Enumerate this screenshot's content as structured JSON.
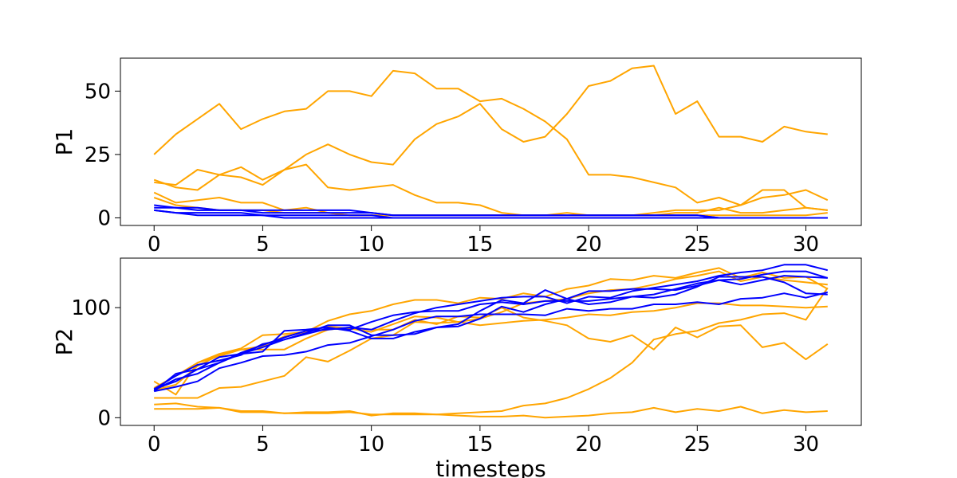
{
  "chart_data": [
    {
      "type": "line",
      "ylabel": "P1",
      "xlabel": "",
      "xlim": [
        -1.55,
        32.55
      ],
      "ylim": [
        -3,
        63
      ],
      "xticks": [
        0,
        5,
        10,
        15,
        20,
        25,
        30
      ],
      "yticks": [
        0,
        25,
        50
      ],
      "grid": false,
      "x": [
        0,
        1,
        2,
        3,
        4,
        5,
        6,
        7,
        8,
        9,
        10,
        11,
        12,
        13,
        14,
        15,
        16,
        17,
        18,
        19,
        20,
        21,
        22,
        23,
        24,
        25,
        26,
        27,
        28,
        29,
        30,
        31
      ],
      "series": [
        {
          "color": "#ffa500",
          "values": [
            25,
            33,
            39,
            45,
            35,
            39,
            42,
            43,
            50,
            50,
            48,
            58,
            57,
            51,
            51,
            46,
            47,
            43,
            38,
            31,
            17,
            17,
            16,
            14,
            12,
            6,
            8,
            5,
            11,
            11,
            4,
            3
          ]
        },
        {
          "color": "#ffa500",
          "values": [
            15,
            12,
            11,
            17,
            16,
            13,
            19,
            25,
            29,
            25,
            22,
            21,
            31,
            37,
            40,
            45,
            35,
            30,
            32,
            41,
            52,
            54,
            59,
            60,
            41,
            46,
            32,
            32,
            30,
            36,
            34,
            33
          ]
        },
        {
          "color": "#ffa500",
          "values": [
            14,
            13,
            19,
            17,
            20,
            15,
            19,
            21,
            12,
            11,
            12,
            13,
            9,
            6,
            6,
            5,
            2,
            1,
            1,
            2,
            1,
            1,
            1,
            2,
            3,
            3,
            3,
            5,
            8,
            9,
            11,
            7
          ]
        },
        {
          "color": "#ffa500",
          "values": [
            10,
            6,
            7,
            8,
            6,
            6,
            3,
            4,
            2,
            1,
            1,
            1,
            1,
            1,
            1,
            1,
            1,
            1,
            1,
            1,
            1,
            1,
            1,
            1,
            2,
            2,
            4,
            2,
            2,
            3,
            4,
            3
          ]
        },
        {
          "color": "#ffa500",
          "values": [
            8,
            5,
            4,
            3,
            3,
            3,
            2,
            2,
            2,
            1,
            1,
            1,
            1,
            1,
            1,
            1,
            1,
            1,
            1,
            1,
            1,
            1,
            1,
            1,
            1,
            1,
            1,
            1,
            1,
            1,
            1,
            2
          ]
        },
        {
          "color": "#0000ff",
          "values": [
            5,
            4,
            3,
            3,
            3,
            2,
            2,
            2,
            2,
            2,
            2,
            1,
            1,
            1,
            1,
            1,
            1,
            1,
            1,
            1,
            1,
            1,
            1,
            1,
            1,
            1,
            0,
            0,
            0,
            0,
            0,
            0
          ]
        },
        {
          "color": "#0000ff",
          "values": [
            4,
            4,
            4,
            3,
            3,
            3,
            3,
            3,
            3,
            3,
            2,
            1,
            1,
            1,
            1,
            1,
            1,
            1,
            1,
            1,
            1,
            1,
            1,
            1,
            1,
            1,
            0,
            0,
            0,
            0,
            0,
            0
          ]
        },
        {
          "color": "#0000ff",
          "values": [
            3,
            2,
            1,
            1,
            1,
            1,
            0,
            0,
            0,
            0,
            0,
            0,
            0,
            0,
            0,
            0,
            0,
            0,
            0,
            0,
            0,
            0,
            0,
            0,
            0,
            0,
            0,
            0,
            0,
            0,
            0,
            0
          ]
        },
        {
          "color": "#0000ff",
          "values": [
            3,
            2,
            2,
            2,
            2,
            1,
            1,
            1,
            1,
            1,
            1,
            0,
            0,
            0,
            0,
            0,
            0,
            0,
            0,
            0,
            0,
            0,
            0,
            0,
            0,
            0,
            0,
            0,
            0,
            0,
            0,
            0
          ]
        }
      ]
    },
    {
      "type": "line",
      "ylabel": "P2",
      "xlabel": "timesteps",
      "xlim": [
        -1.55,
        32.55
      ],
      "ylim": [
        -7,
        145
      ],
      "xticks": [
        0,
        5,
        10,
        15,
        20,
        25,
        30
      ],
      "yticks": [
        0,
        100
      ],
      "grid": false,
      "x": [
        0,
        1,
        2,
        3,
        4,
        5,
        6,
        7,
        8,
        9,
        10,
        11,
        12,
        13,
        14,
        15,
        16,
        17,
        18,
        19,
        20,
        21,
        22,
        23,
        24,
        25,
        26,
        27,
        28,
        29,
        30,
        31
      ],
      "series": [
        {
          "color": "#ffa500",
          "values": [
            33,
            21,
            50,
            58,
            63,
            75,
            76,
            78,
            88,
            94,
            97,
            103,
            107,
            107,
            104,
            109,
            108,
            113,
            110,
            117,
            120,
            126,
            125,
            129,
            127,
            132,
            136,
            127,
            132,
            127,
            128,
            117
          ]
        },
        {
          "color": "#ffa500",
          "values": [
            27,
            38,
            50,
            56,
            62,
            65,
            74,
            78,
            83,
            81,
            78,
            85,
            92,
            91,
            87,
            90,
            96,
            104,
            106,
            108,
            113,
            116,
            117,
            121,
            126,
            129,
            133,
            124,
            128,
            125,
            123,
            121
          ]
        },
        {
          "color": "#ffa500",
          "values": [
            25,
            30,
            47,
            57,
            62,
            62,
            62,
            72,
            80,
            82,
            80,
            80,
            89,
            85,
            92,
            91,
            100,
            91,
            88,
            84,
            72,
            69,
            75,
            62,
            82,
            73,
            83,
            84,
            64,
            68,
            53,
            67
          ]
        },
        {
          "color": "#ffa500",
          "values": [
            18,
            18,
            18,
            27,
            28,
            33,
            38,
            55,
            51,
            61,
            72,
            75,
            87,
            86,
            87,
            84,
            86,
            88,
            89,
            91,
            94,
            93,
            96,
            97,
            100,
            104,
            104,
            102,
            102,
            101,
            100,
            101
          ]
        },
        {
          "color": "#ffa500",
          "values": [
            12,
            13,
            10,
            9,
            6,
            6,
            4,
            4,
            4,
            5,
            3,
            3,
            3,
            3,
            4,
            5,
            6,
            11,
            13,
            18,
            26,
            36,
            50,
            71,
            76,
            79,
            86,
            89,
            94,
            95,
            89,
            118
          ]
        },
        {
          "color": "#ffa500",
          "values": [
            8,
            8,
            8,
            9,
            5,
            5,
            4,
            5,
            5,
            6,
            2,
            4,
            4,
            3,
            2,
            1,
            1,
            2,
            0,
            1,
            2,
            4,
            5,
            9,
            5,
            8,
            6,
            10,
            4,
            7,
            5,
            6
          ]
        },
        {
          "color": "#0000ff",
          "values": [
            24,
            40,
            44,
            55,
            58,
            60,
            79,
            80,
            82,
            79,
            72,
            72,
            78,
            82,
            85,
            97,
            107,
            104,
            116,
            108,
            115,
            115,
            117,
            117,
            116,
            120,
            125,
            126,
            130,
            133,
            133,
            127
          ]
        },
        {
          "color": "#0000ff",
          "values": [
            26,
            38,
            48,
            52,
            57,
            67,
            71,
            77,
            84,
            84,
            75,
            75,
            76,
            82,
            83,
            90,
            101,
            96,
            103,
            108,
            103,
            105,
            110,
            109,
            112,
            119,
            128,
            128,
            128,
            123,
            113,
            112
          ]
        },
        {
          "color": "#0000ff",
          "values": [
            24,
            28,
            33,
            45,
            50,
            56,
            57,
            60,
            66,
            68,
            74,
            80,
            88,
            92,
            92,
            94,
            94,
            94,
            93,
            99,
            97,
            99,
            99,
            103,
            103,
            105,
            103,
            108,
            109,
            113,
            109,
            114
          ]
        },
        {
          "color": "#0000ff",
          "values": [
            25,
            35,
            40,
            50,
            58,
            64,
            71,
            76,
            81,
            80,
            87,
            93,
            96,
            97,
            97,
            103,
            105,
            103,
            106,
            106,
            106,
            108,
            110,
            112,
            117,
            122,
            125,
            121,
            125,
            129,
            128,
            127
          ]
        },
        {
          "color": "#0000ff",
          "values": [
            26,
            33,
            44,
            50,
            59,
            66,
            73,
            79,
            80,
            82,
            80,
            88,
            95,
            100,
            103,
            106,
            109,
            110,
            110,
            104,
            110,
            109,
            115,
            118,
            121,
            124,
            129,
            132,
            134,
            139,
            139,
            134
          ]
        }
      ]
    }
  ]
}
